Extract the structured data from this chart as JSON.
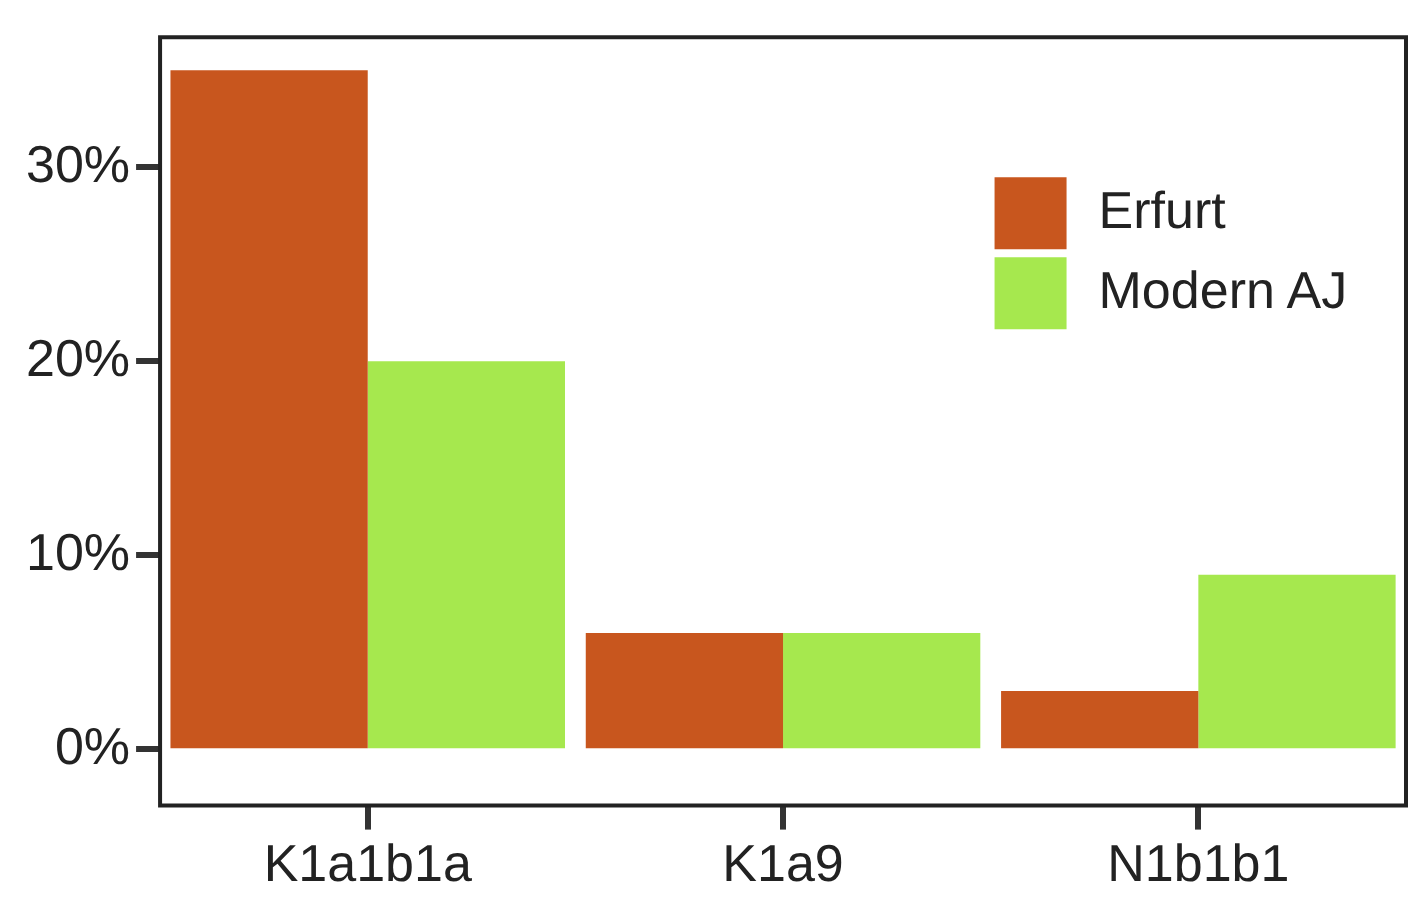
{
  "chart_data": {
    "type": "bar",
    "categories": [
      "K1a1b1a",
      "K1a9",
      "N1b1b1"
    ],
    "series": [
      {
        "name": "Erfurt",
        "color": "#c8561e",
        "values": [
          35,
          6,
          3
        ]
      },
      {
        "name": "Modern AJ",
        "color": "#a6e84e",
        "values": [
          20,
          6,
          9
        ]
      }
    ],
    "ylim": [
      -2.9,
      36.7
    ],
    "yticks": [
      {
        "value": 0,
        "label": "0%"
      },
      {
        "value": 10,
        "label": "10%"
      },
      {
        "value": 20,
        "label": "20%"
      },
      {
        "value": 30,
        "label": "30%"
      }
    ],
    "grid": false,
    "legend": "top right"
  }
}
